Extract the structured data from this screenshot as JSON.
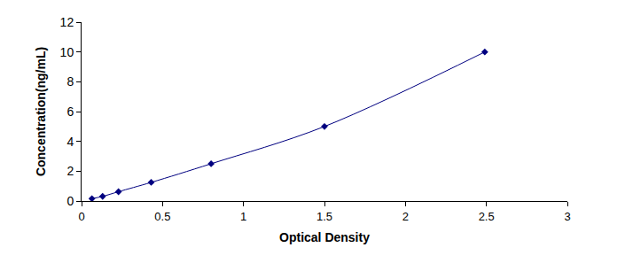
{
  "chart_data": {
    "type": "line",
    "x_label": "Optical Density",
    "y_label": "Concentration(ng/mL)",
    "x": [
      0.064,
      0.13,
      0.228,
      0.43,
      0.8,
      1.5,
      2.49
    ],
    "values": [
      0.156,
      0.312,
      0.625,
      1.25,
      2.5,
      5,
      10
    ],
    "color": "#000080",
    "marker": "diamond",
    "line_style": "solid",
    "xlim": [
      0,
      3
    ],
    "xticks": [
      0,
      0.5,
      1,
      1.5,
      2,
      2.5,
      3
    ],
    "ylim": [
      0,
      12
    ],
    "yticks": [
      0,
      2,
      4,
      6,
      8,
      10,
      12
    ],
    "grid": false
  }
}
